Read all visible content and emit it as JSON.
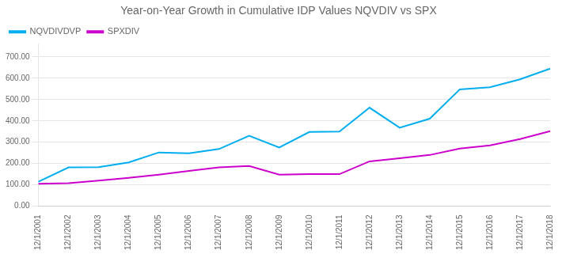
{
  "chart_data": {
    "type": "line",
    "title": "Year-on-Year Growth in Cumulative IDP Values NQVDIV vs SPX",
    "categories": [
      "12/1/2001",
      "12/1/2002",
      "12/1/2003",
      "12/1/2004",
      "12/1/2005",
      "12/1/2006",
      "12/1/2007",
      "12/1/2008",
      "12/1/2009",
      "12/1/2010",
      "12/1/2011",
      "12/1/2012",
      "12/1/2013",
      "12/1/2014",
      "12/1/2015",
      "12/1/2016",
      "12/1/2017",
      "12/1/2018"
    ],
    "series": [
      {
        "name": "NQVDIVDVP",
        "color": "#00AEEF",
        "values": [
          115,
          182,
          183,
          205,
          252,
          248,
          268,
          330,
          275,
          348,
          350,
          462,
          368,
          410,
          548,
          558,
          595,
          645
        ]
      },
      {
        "name": "SPXDIV",
        "color": "#CC00CC",
        "values": [
          105,
          108,
          120,
          133,
          148,
          165,
          182,
          188,
          148,
          150,
          150,
          210,
          225,
          240,
          270,
          285,
          315,
          352
        ]
      }
    ],
    "ylim": [
      0,
      760
    ],
    "yticks": [
      {
        "value": 0,
        "label": "0.00"
      },
      {
        "value": 100,
        "label": "100.00"
      },
      {
        "value": 200,
        "label": "200.00"
      },
      {
        "value": 300,
        "label": "300.00"
      },
      {
        "value": 400,
        "label": "400.00"
      },
      {
        "value": 500,
        "label": "500.00"
      },
      {
        "value": 600,
        "label": "600.00"
      },
      {
        "value": 700,
        "label": "700.00"
      }
    ],
    "grid": true,
    "legend": "upper left"
  }
}
